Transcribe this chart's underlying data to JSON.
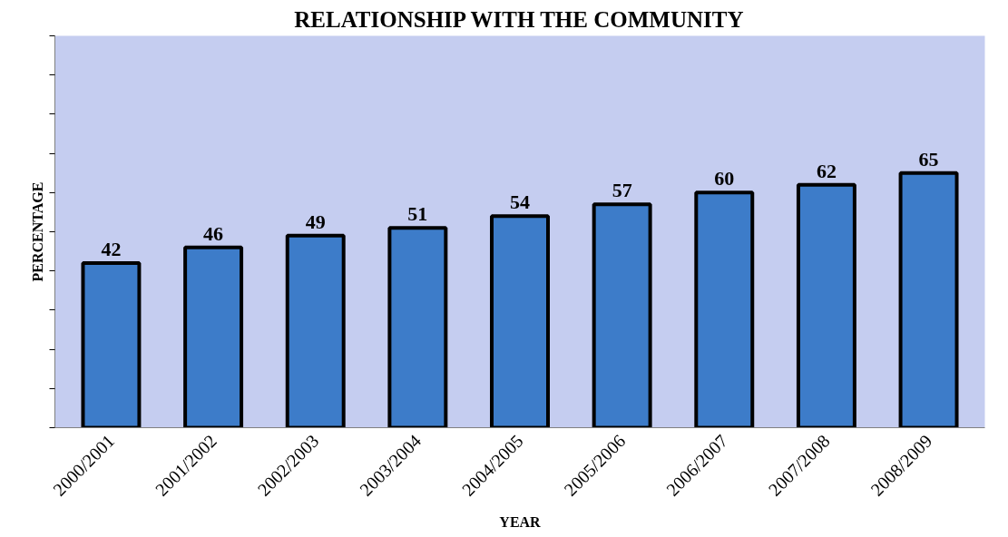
{
  "chart_data": {
    "type": "bar",
    "title": "RELATIONSHIP WITH THE COMMUNITY",
    "xlabel": "YEAR",
    "ylabel": "PERCENTAGE",
    "categories": [
      "2000/2001",
      "2001/2002",
      "2002/2003",
      "2003/2004",
      "2004/2005",
      "2005/2006",
      "2006/2007",
      "2007/2008",
      "2008/2009"
    ],
    "values": [
      42,
      46,
      49,
      51,
      54,
      57,
      60,
      62,
      65
    ],
    "color": "#3d7cc9",
    "data_labels": true,
    "ylim": [
      0,
      100
    ],
    "yticks": [
      {
        "value": 0,
        "label": null
      },
      {
        "value": 10,
        "label": null
      },
      {
        "value": 20,
        "label": null
      },
      {
        "value": 30,
        "label": null
      },
      {
        "value": 40,
        "label": null
      },
      {
        "value": 50,
        "label": null
      },
      {
        "value": 60,
        "label": null
      },
      {
        "value": 70,
        "label": null
      },
      {
        "value": 80,
        "label": null
      },
      {
        "value": 90,
        "label": null
      },
      {
        "value": 100,
        "label": null
      }
    ],
    "tick_labels": "x",
    "grid": false
  }
}
